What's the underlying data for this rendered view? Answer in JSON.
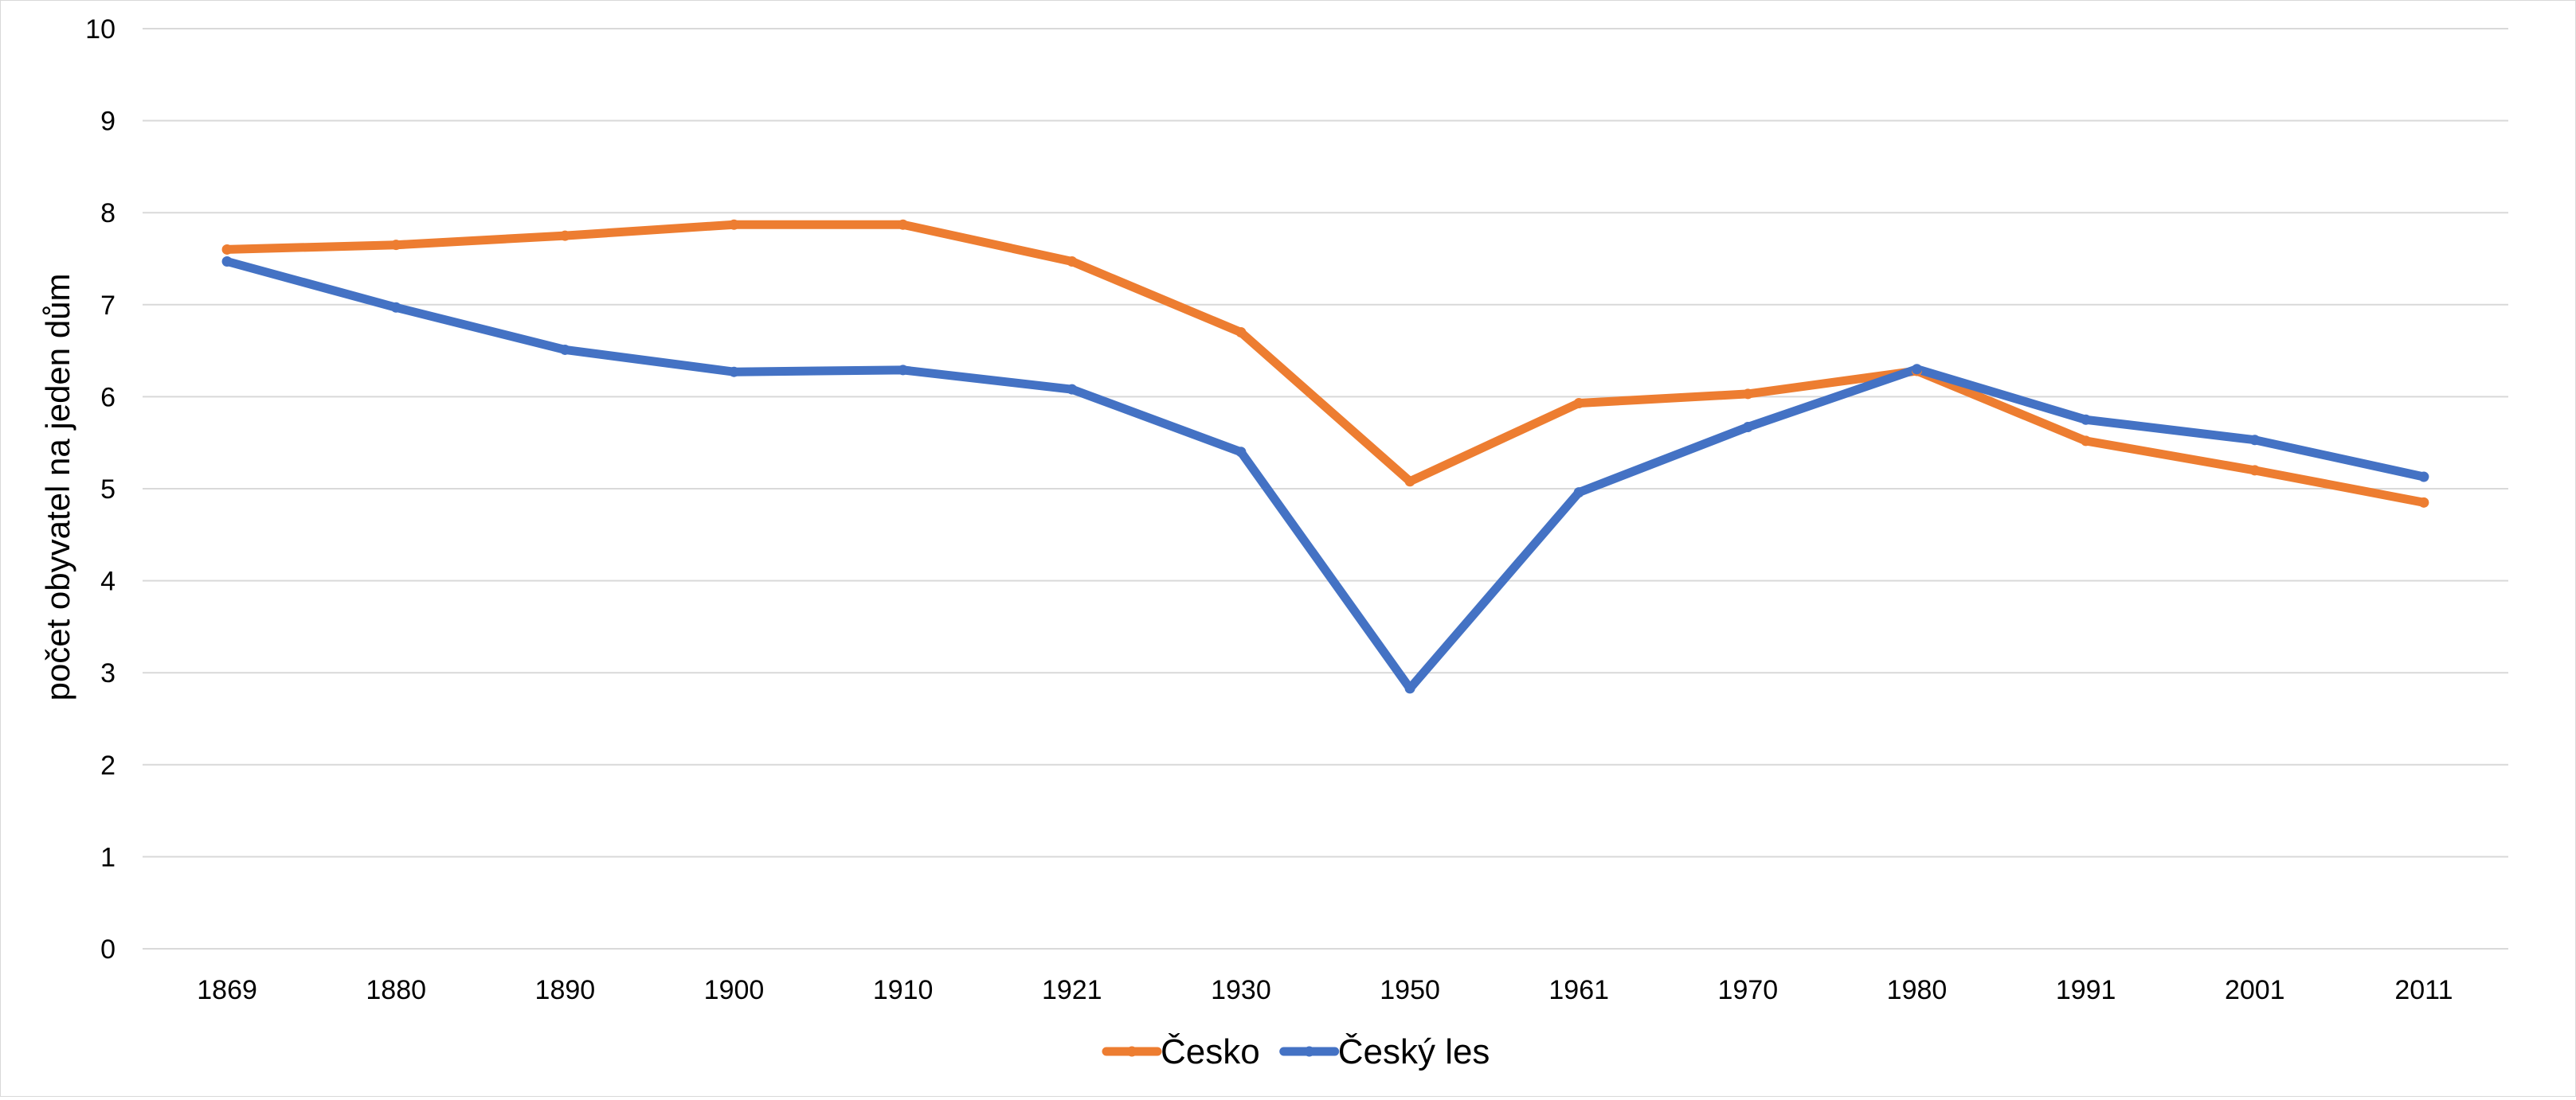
{
  "chart_data": {
    "type": "line",
    "title": "",
    "xlabel": "",
    "ylabel": "počet obyvatel na jeden dům",
    "categories": [
      "1869",
      "1880",
      "1890",
      "1900",
      "1910",
      "1921",
      "1930",
      "1950",
      "1961",
      "1970",
      "1980",
      "1991",
      "2001",
      "2011"
    ],
    "ylim": [
      0,
      10
    ],
    "yticks": [
      0,
      1,
      2,
      3,
      4,
      5,
      6,
      7,
      8,
      9,
      10
    ],
    "grid": true,
    "legend": "bottom",
    "series": [
      {
        "name": "Česko",
        "color": "#ED7D31",
        "values": [
          7.6,
          7.65,
          7.75,
          7.87,
          7.87,
          7.47,
          6.7,
          5.08,
          5.93,
          6.03,
          6.28,
          5.52,
          5.2,
          4.85
        ]
      },
      {
        "name": "Český les",
        "color": "#4472C4",
        "values": [
          7.47,
          6.97,
          6.51,
          6.27,
          6.29,
          6.08,
          5.4,
          2.83,
          4.96,
          5.67,
          6.3,
          5.75,
          5.53,
          5.13
        ]
      }
    ]
  }
}
